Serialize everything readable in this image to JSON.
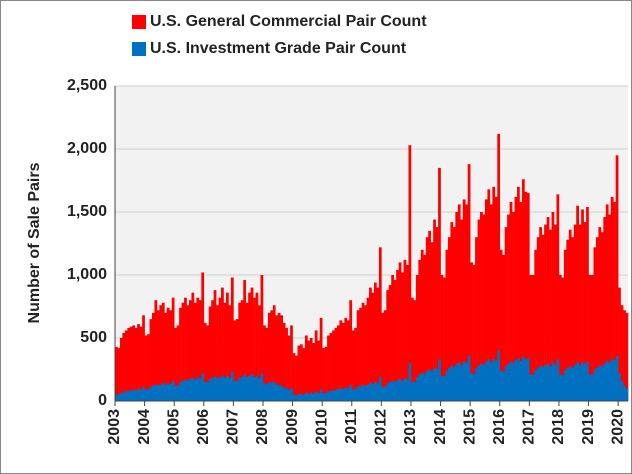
{
  "chart_data": {
    "type": "bar",
    "ylabel": "Number of Sale Pairs",
    "legend": "top",
    "grid": true,
    "ylim": [
      0,
      2500
    ],
    "yticks": [
      0,
      500,
      {
        "value": 1000,
        "label": "1,000"
      },
      {
        "value": 1500,
        "label": "1,500"
      },
      {
        "value": 2000,
        "label": "2,000"
      },
      {
        "value": 2500,
        "label": "2,500"
      }
    ],
    "categories": [
      "2003",
      null,
      null,
      null,
      null,
      null,
      null,
      null,
      null,
      null,
      null,
      null,
      "2004",
      null,
      null,
      null,
      null,
      null,
      null,
      null,
      null,
      null,
      null,
      null,
      "2005",
      null,
      null,
      null,
      null,
      null,
      null,
      null,
      null,
      null,
      null,
      null,
      "2006",
      null,
      null,
      null,
      null,
      null,
      null,
      null,
      null,
      null,
      null,
      null,
      "2007",
      null,
      null,
      null,
      null,
      null,
      null,
      null,
      null,
      null,
      null,
      null,
      "2008",
      null,
      null,
      null,
      null,
      null,
      null,
      null,
      null,
      null,
      null,
      null,
      "2009",
      null,
      null,
      null,
      null,
      null,
      null,
      null,
      null,
      null,
      null,
      null,
      "2010",
      null,
      null,
      null,
      null,
      null,
      null,
      null,
      null,
      null,
      null,
      null,
      "2011",
      null,
      null,
      null,
      null,
      null,
      null,
      null,
      null,
      null,
      null,
      null,
      "2012",
      null,
      null,
      null,
      null,
      null,
      null,
      null,
      null,
      null,
      null,
      null,
      "2013",
      null,
      null,
      null,
      null,
      null,
      null,
      null,
      null,
      null,
      null,
      null,
      "2014",
      null,
      null,
      null,
      null,
      null,
      null,
      null,
      null,
      null,
      null,
      null,
      "2015",
      null,
      null,
      null,
      null,
      null,
      null,
      null,
      null,
      null,
      null,
      null,
      "2016",
      null,
      null,
      null,
      null,
      null,
      null,
      null,
      null,
      null,
      null,
      null,
      "2017",
      null,
      null,
      null,
      null,
      null,
      null,
      null,
      null,
      null,
      null,
      null,
      "2018",
      null,
      null,
      null,
      null,
      null,
      null,
      null,
      null,
      null,
      null,
      null,
      "2019",
      null,
      null,
      null,
      null,
      null,
      null,
      null,
      null,
      null,
      null,
      null,
      "2020",
      null,
      null,
      null
    ],
    "series": [
      {
        "name": "U.S. General Commercial Pair Count",
        "color": "#ff0000",
        "values": [
          430,
          420,
          500,
          540,
          560,
          580,
          590,
          600,
          580,
          610,
          590,
          680,
          520,
          530,
          650,
          700,
          800,
          720,
          760,
          780,
          700,
          740,
          720,
          820,
          580,
          600,
          740,
          780,
          820,
          760,
          800,
          860,
          780,
          820,
          800,
          1020,
          620,
          600,
          750,
          800,
          880,
          760,
          820,
          900,
          780,
          860,
          760,
          980,
          640,
          650,
          780,
          800,
          960,
          780,
          860,
          900,
          820,
          860,
          760,
          1000,
          600,
          580,
          700,
          720,
          760,
          680,
          700,
          680,
          620,
          580,
          520,
          600,
          380,
          360,
          440,
          450,
          420,
          520,
          480,
          500,
          460,
          560,
          480,
          660,
          420,
          430,
          520,
          540,
          560,
          580,
          600,
          640,
          620,
          660,
          640,
          800,
          560,
          580,
          720,
          740,
          780,
          760,
          820,
          900,
          860,
          940,
          900,
          1220,
          700,
          720,
          880,
          920,
          1000,
          960,
          1040,
          1100,
          1020,
          1120,
          1080,
          2030,
          820,
          800,
          1000,
          1120,
          1200,
          1160,
          1300,
          1350,
          1260,
          1440,
          1380,
          1850,
          1000,
          980,
          1200,
          1300,
          1420,
          1380,
          1500,
          1560,
          1440,
          1600,
          1560,
          1880,
          1100,
          1080,
          1300,
          1440,
          1500,
          1480,
          1600,
          1680,
          1560,
          1700,
          1620,
          2120,
          1200,
          1160,
          1380,
          1480,
          1580,
          1500,
          1620,
          1700,
          1580,
          1760,
          1660,
          1650,
          1000,
          1000,
          1200,
          1300,
          1380,
          1320,
          1400,
          1460,
          1360,
          1500,
          1400,
          1640,
          1000,
          980,
          1200,
          1280,
          1360,
          1300,
          1400,
          1550,
          1400,
          1520,
          1420,
          1540,
          1000,
          1000,
          1220,
          1300,
          1380,
          1340,
          1460,
          1560,
          1480,
          1620,
          1580,
          1950,
          900,
          760,
          720,
          700
        ]
      },
      {
        "name": "U.S. Investment Grade Pair Count",
        "color": "#0070c0",
        "values": [
          50,
          55,
          65,
          70,
          75,
          80,
          85,
          90,
          85,
          95,
          90,
          110,
          90,
          95,
          115,
          120,
          130,
          125,
          130,
          140,
          130,
          140,
          135,
          160,
          120,
          125,
          150,
          160,
          170,
          165,
          175,
          185,
          170,
          185,
          180,
          220,
          150,
          150,
          175,
          185,
          195,
          180,
          190,
          200,
          185,
          200,
          180,
          230,
          160,
          160,
          185,
          190,
          210,
          190,
          200,
          210,
          190,
          200,
          180,
          220,
          140,
          130,
          150,
          150,
          150,
          130,
          130,
          120,
          110,
          100,
          90,
          100,
          50,
          45,
          55,
          55,
          50,
          65,
          60,
          65,
          60,
          70,
          65,
          90,
          60,
          65,
          75,
          80,
          85,
          90,
          95,
          100,
          95,
          105,
          100,
          130,
          90,
          95,
          115,
          120,
          125,
          120,
          130,
          145,
          135,
          150,
          140,
          190,
          110,
          115,
          140,
          150,
          160,
          155,
          165,
          175,
          160,
          180,
          170,
          300,
          150,
          150,
          190,
          210,
          225,
          215,
          240,
          250,
          235,
          265,
          255,
          330,
          200,
          195,
          240,
          260,
          280,
          270,
          295,
          305,
          285,
          315,
          305,
          360,
          220,
          215,
          260,
          285,
          295,
          290,
          315,
          330,
          305,
          335,
          320,
          400,
          240,
          230,
          275,
          295,
          315,
          300,
          325,
          340,
          315,
          350,
          330,
          340,
          210,
          210,
          245,
          265,
          280,
          270,
          285,
          295,
          275,
          305,
          285,
          330,
          210,
          205,
          245,
          260,
          275,
          265,
          285,
          310,
          285,
          305,
          290,
          310,
          210,
          210,
          250,
          265,
          280,
          275,
          300,
          320,
          305,
          330,
          325,
          360,
          220,
          160,
          120,
          100
        ]
      }
    ]
  }
}
